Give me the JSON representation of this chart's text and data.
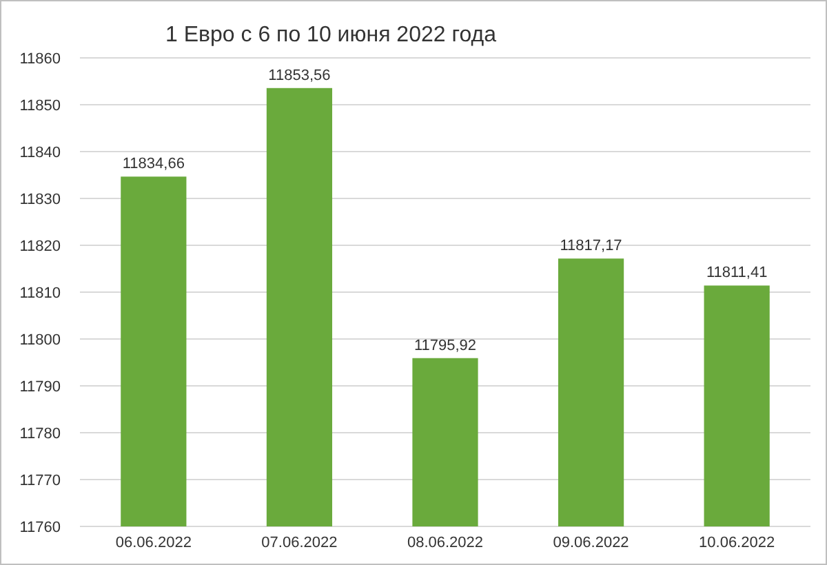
{
  "chart_data": {
    "type": "bar",
    "title": "1 Евро с 6 по 10 июня 2022 года",
    "categories": [
      "06.06.2022",
      "07.06.2022",
      "08.06.2022",
      "09.06.2022",
      "10.06.2022"
    ],
    "values": [
      11834.66,
      11853.56,
      11795.92,
      11817.17,
      11811.41
    ],
    "value_labels": [
      "11834,66",
      "11853,56",
      "11795,92",
      "11817,17",
      "11811,41"
    ],
    "color": "#6aaa3c",
    "ylim": [
      11760,
      11860
    ],
    "yticks": [
      11760,
      11770,
      11780,
      11790,
      11800,
      11810,
      11820,
      11830,
      11840,
      11850,
      11860
    ],
    "grid": "y"
  }
}
